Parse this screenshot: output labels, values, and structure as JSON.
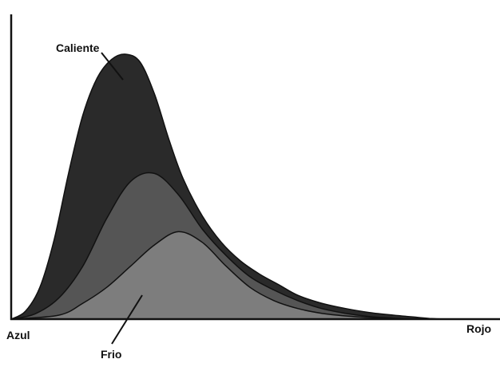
{
  "chart_data": {
    "type": "area",
    "title": "",
    "xlabel": "",
    "ylabel": "",
    "x_tick_labels": [
      "Azul",
      "Rojo"
    ],
    "grid": false,
    "legend": "none",
    "annotations": [
      "Caliente",
      "Frio"
    ],
    "xlim": [
      0,
      100
    ],
    "ylim": [
      0,
      100
    ],
    "series": [
      {
        "color": "#2a2a2a",
        "x": [
          0,
          3,
          6,
          9,
          12,
          15,
          18,
          21,
          24,
          27,
          30,
          33,
          36,
          40,
          44,
          48,
          52,
          56,
          60,
          65,
          70,
          75,
          80,
          85,
          88,
          91
        ],
        "y": [
          0,
          3,
          12,
          30,
          55,
          77,
          91,
          98,
          100,
          97,
          85,
          68,
          53,
          39,
          29,
          22,
          17,
          13,
          9,
          6,
          4,
          2.5,
          1.5,
          0.7,
          0.2,
          0
        ]
      },
      {
        "color": "#555555",
        "x": [
          0,
          5,
          10,
          15,
          20,
          25,
          30,
          35,
          40,
          45,
          50,
          55,
          60,
          65,
          70,
          75,
          80,
          84
        ],
        "y": [
          0,
          2,
          8,
          20,
          38,
          52,
          55,
          47,
          34,
          24,
          16,
          11,
          7,
          4,
          2.2,
          1,
          0.4,
          0
        ]
      },
      {
        "color": "#7d7d7d",
        "x": [
          0,
          10,
          15,
          20,
          25,
          30,
          35,
          40,
          45,
          50,
          55,
          60,
          65,
          70,
          75,
          80,
          84
        ],
        "y": [
          0,
          1.5,
          6,
          12,
          20,
          28,
          33,
          29,
          20,
          12,
          7,
          4,
          2.2,
          1.2,
          0.6,
          0.2,
          0
        ]
      }
    ]
  }
}
